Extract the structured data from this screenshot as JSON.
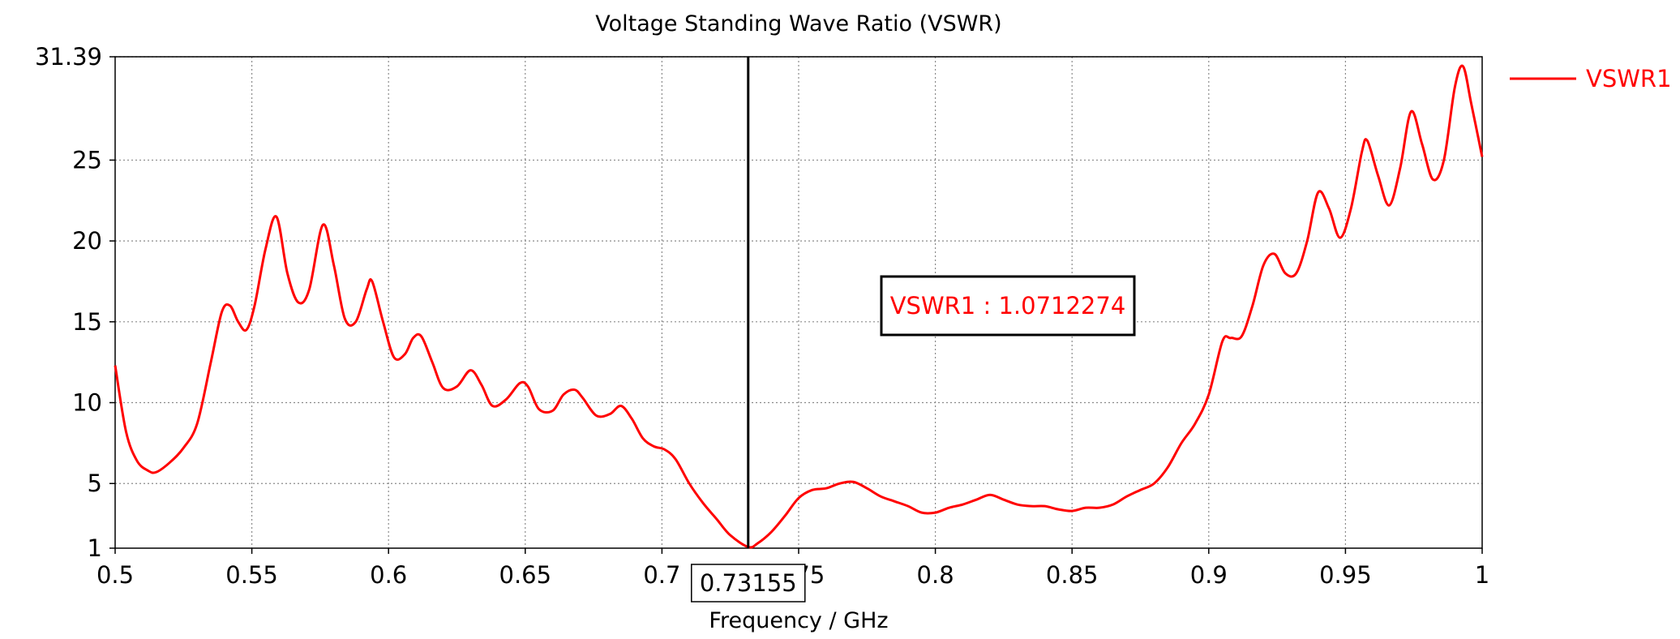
{
  "chart_data": {
    "type": "line",
    "title": "Voltage Standing Wave Ratio (VSWR)",
    "xlabel": "Frequency / GHz",
    "ylabel": "",
    "xlim": [
      0.5,
      1.0
    ],
    "ylim": [
      1,
      31.39
    ],
    "x_ticks": [
      {
        "value": 0.5,
        "label": "0.5"
      },
      {
        "value": 0.55,
        "label": "0.55"
      },
      {
        "value": 0.6,
        "label": "0.6"
      },
      {
        "value": 0.65,
        "label": "0.65"
      },
      {
        "value": 0.7,
        "label": "0.7"
      },
      {
        "value": 0.75,
        "label": "0.75"
      },
      {
        "value": 0.8,
        "label": "0.8"
      },
      {
        "value": 0.85,
        "label": "0.85"
      },
      {
        "value": 0.9,
        "label": "0.9"
      },
      {
        "value": 0.95,
        "label": "0.95"
      },
      {
        "value": 1.0,
        "label": "1"
      }
    ],
    "y_ticks": [
      {
        "value": 1,
        "label": "1"
      },
      {
        "value": 5,
        "label": "5"
      },
      {
        "value": 10,
        "label": "10"
      },
      {
        "value": 15,
        "label": "15"
      },
      {
        "value": 20,
        "label": "20"
      },
      {
        "value": 25,
        "label": "25"
      },
      {
        "value": 31.39,
        "label": "31.39"
      }
    ],
    "grid": true,
    "legend_position": "top-right",
    "series": [
      {
        "name": "VSWR1",
        "color": "#ff0000",
        "x": [
          0.5,
          0.504,
          0.508,
          0.512,
          0.515,
          0.52,
          0.525,
          0.53,
          0.535,
          0.539,
          0.542,
          0.545,
          0.548,
          0.551,
          0.555,
          0.559,
          0.563,
          0.567,
          0.571,
          0.576,
          0.58,
          0.584,
          0.588,
          0.592,
          0.594,
          0.598,
          0.602,
          0.606,
          0.609,
          0.612,
          0.616,
          0.62,
          0.625,
          0.63,
          0.634,
          0.638,
          0.643,
          0.648,
          0.651,
          0.655,
          0.66,
          0.664,
          0.668,
          0.671,
          0.676,
          0.681,
          0.685,
          0.689,
          0.693,
          0.697,
          0.701,
          0.705,
          0.71,
          0.715,
          0.72,
          0.725,
          0.7316,
          0.735,
          0.74,
          0.745,
          0.75,
          0.755,
          0.76,
          0.765,
          0.77,
          0.775,
          0.78,
          0.785,
          0.79,
          0.795,
          0.8,
          0.805,
          0.81,
          0.815,
          0.82,
          0.825,
          0.83,
          0.835,
          0.84,
          0.845,
          0.85,
          0.855,
          0.86,
          0.865,
          0.87,
          0.875,
          0.88,
          0.885,
          0.89,
          0.895,
          0.9,
          0.905,
          0.908,
          0.912,
          0.916,
          0.92,
          0.924,
          0.928,
          0.932,
          0.936,
          0.94,
          0.944,
          0.948,
          0.952,
          0.956,
          0.958,
          0.962,
          0.966,
          0.97,
          0.974,
          0.978,
          0.982,
          0.986,
          0.99,
          0.993,
          0.996,
          1.0
        ],
        "values": [
          12.3,
          8.2,
          6.4,
          5.8,
          5.7,
          6.3,
          7.2,
          8.7,
          12.5,
          15.6,
          16.0,
          15.0,
          14.5,
          16.0,
          19.5,
          21.5,
          18.0,
          16.2,
          17.0,
          21.0,
          18.5,
          15.2,
          15.0,
          17.0,
          17.5,
          15.0,
          12.8,
          13.0,
          14.0,
          14.1,
          12.5,
          10.9,
          11.0,
          12.0,
          11.1,
          9.8,
          10.2,
          11.2,
          11.0,
          9.6,
          9.5,
          10.5,
          10.8,
          10.3,
          9.2,
          9.3,
          9.8,
          9.0,
          7.8,
          7.3,
          7.1,
          6.5,
          5.0,
          3.8,
          2.8,
          1.8,
          1.07,
          1.3,
          2.0,
          3.0,
          4.1,
          4.6,
          4.7,
          5.0,
          5.1,
          4.7,
          4.2,
          3.9,
          3.6,
          3.2,
          3.2,
          3.5,
          3.7,
          4.0,
          4.3,
          4.0,
          3.7,
          3.6,
          3.6,
          3.4,
          3.3,
          3.5,
          3.5,
          3.7,
          4.2,
          4.6,
          5.0,
          6.0,
          7.5,
          8.7,
          10.5,
          13.8,
          14.0,
          14.1,
          16.0,
          18.5,
          19.2,
          18.0,
          18.0,
          20.0,
          23.0,
          22.0,
          20.2,
          22.0,
          25.5,
          26.2,
          24.0,
          22.2,
          24.5,
          28.0,
          26.0,
          23.8,
          25.0,
          29.5,
          30.8,
          28.5,
          25.2
        ]
      }
    ],
    "marker": {
      "x": 0.73155,
      "x_label": "0.73155",
      "annotation": "VSWR1 : 1.0712274"
    }
  }
}
